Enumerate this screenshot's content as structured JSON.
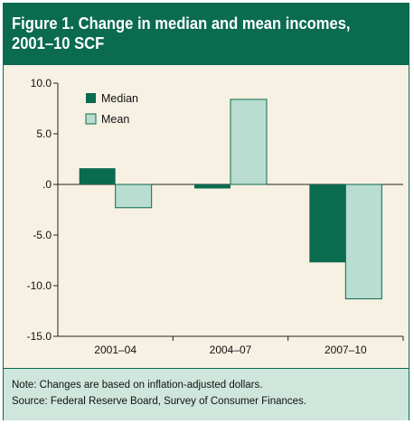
{
  "figure": {
    "title_line1": "Figure 1. Change in median and mean incomes,",
    "title_line2": "2001–10 SCF",
    "note": "Note: Changes are based on inflation-adjusted dollars.",
    "source": "Source: Federal Reserve Board, Survey of Consumer Finances."
  },
  "colors": {
    "header": "#0a6b4f",
    "background": "#f7f1e3",
    "median": "#0a6b4f",
    "mean": "#b9ddd0",
    "footer": "#cfe6dc"
  },
  "chart_data": {
    "type": "bar",
    "categories": [
      "2001–04",
      "2004–07",
      "2007–10"
    ],
    "series": [
      {
        "name": "Median",
        "values": [
          1.6,
          -0.4,
          -7.7
        ]
      },
      {
        "name": "Mean",
        "values": [
          -2.3,
          8.4,
          -11.3
        ]
      }
    ],
    "y_ticks": [
      10,
      5,
      0,
      -5,
      -10,
      -15
    ],
    "y_tick_labels": [
      "10.0",
      "5.0",
      ".0",
      "-5.0",
      "-10.0",
      "-15.0"
    ],
    "ylim": [
      -15,
      10
    ],
    "grid": false,
    "legend_position": "top-left",
    "title": "",
    "xlabel": "",
    "ylabel": ""
  }
}
